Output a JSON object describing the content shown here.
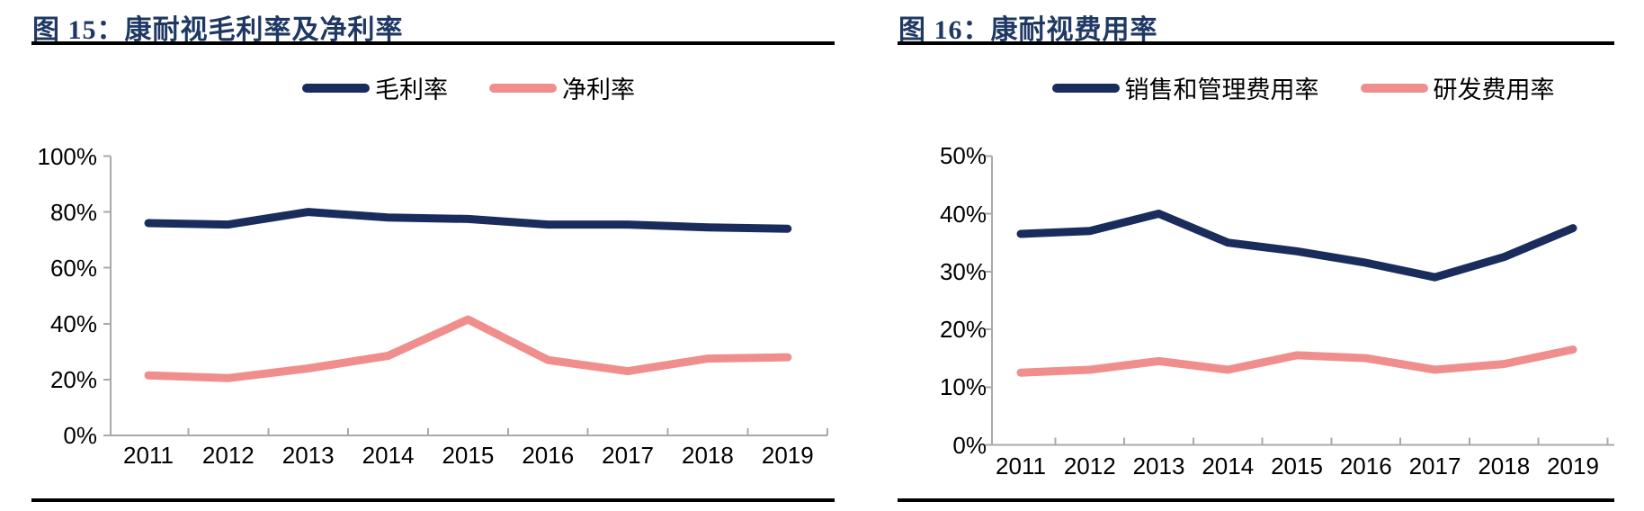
{
  "page_background": "#ffffff",
  "colors": {
    "title_navy": "#1F3864",
    "line_navy": "#1A2C5C",
    "line_pink": "#EF8E8D",
    "axis_gray": "#A9A9A9",
    "rule_black": "#000000",
    "text_black": "#000000"
  },
  "chart_data": [
    {
      "type": "line",
      "title": "图 15：康耐视毛利率及净利率",
      "categories": [
        "2011",
        "2012",
        "2013",
        "2014",
        "2015",
        "2016",
        "2017",
        "2018",
        "2019"
      ],
      "series": [
        {
          "name": "毛利率",
          "color": "#1A2C5C",
          "values": [
            76,
            75.5,
            80,
            78,
            77.5,
            75.5,
            75.5,
            74.5,
            74
          ]
        },
        {
          "name": "净利率",
          "color": "#EF8E8D",
          "values": [
            21.5,
            20.5,
            24,
            28.5,
            41.5,
            27,
            23,
            27.5,
            28
          ]
        }
      ],
      "xlabel": "",
      "ylabel": "",
      "ylim": [
        0,
        100
      ],
      "yticks": [
        "0%",
        "20%",
        "40%",
        "60%",
        "80%",
        "100%"
      ],
      "legend_position": "top",
      "grid": false
    },
    {
      "type": "line",
      "title": "图 16：康耐视费用率",
      "categories": [
        "2011",
        "2012",
        "2013",
        "2014",
        "2015",
        "2016",
        "2017",
        "2018",
        "2019"
      ],
      "series": [
        {
          "name": "销售和管理费用率",
          "color": "#1A2C5C",
          "values": [
            36.5,
            37,
            40,
            35,
            33.5,
            31.5,
            29,
            32.5,
            37.5
          ]
        },
        {
          "name": "研发费用率",
          "color": "#EF8E8D",
          "values": [
            12.5,
            13,
            14.5,
            13,
            15.5,
            15,
            13,
            14,
            16.5
          ]
        }
      ],
      "xlabel": "",
      "ylabel": "",
      "ylim": [
        0,
        50
      ],
      "yticks": [
        "0%",
        "10%",
        "20%",
        "30%",
        "40%",
        "50%"
      ],
      "legend_position": "top",
      "grid": false
    }
  ]
}
